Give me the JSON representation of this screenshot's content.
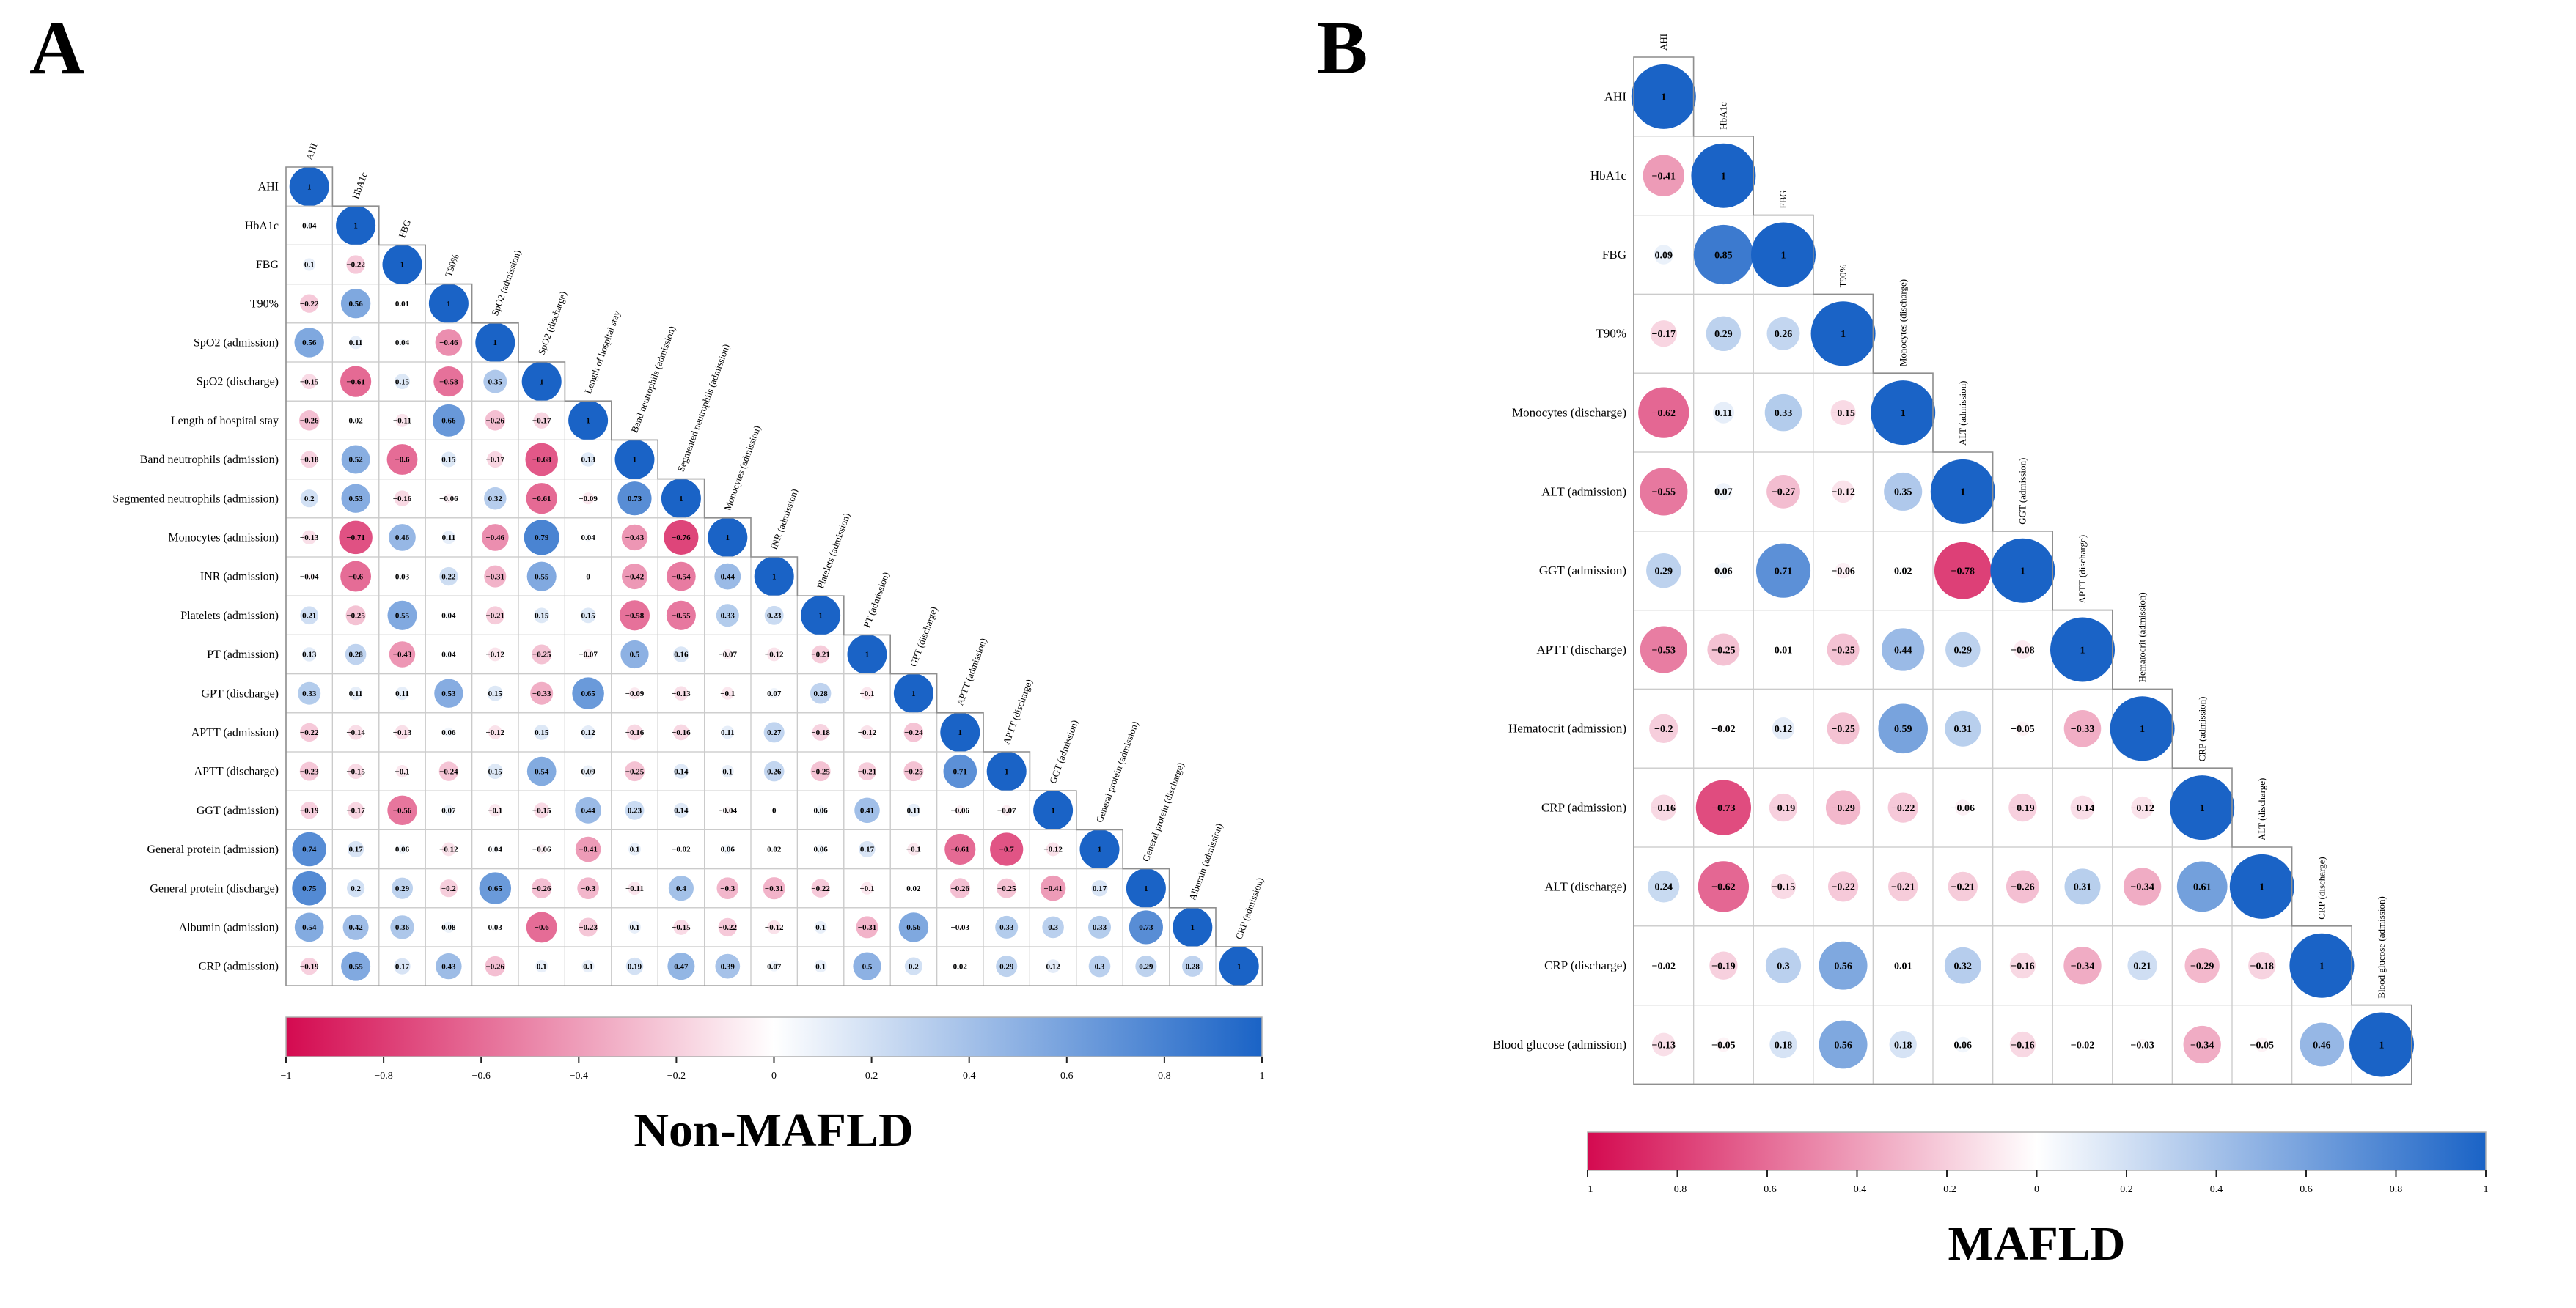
{
  "figure": {
    "panel_a_letter": "A",
    "panel_b_letter": "B",
    "panel_a_title": "Non-MAFLD",
    "panel_b_title": "MAFLD"
  },
  "colorbar": {
    "min": -1,
    "max": 1,
    "ticks": [
      -1,
      -0.8,
      -0.6,
      -0.4,
      -0.2,
      0,
      0.2,
      0.4,
      0.6,
      0.8,
      1
    ],
    "negative_color": "#D40A50",
    "mid_color": "#FFFFFF",
    "positive_color": "#1A63C6"
  },
  "chart_data": [
    {
      "type": "heatmap",
      "panel": "A",
      "title": "Non-MAFLD",
      "legend_position": "bottom",
      "value_range": [
        -1,
        1
      ],
      "variables": [
        "AHI",
        "HbA1c",
        "FBG",
        "T90%",
        "SpO2 (admission)",
        "SpO2 (discharge)",
        "Length of hospital stay",
        "Band neutrophils (admission)",
        "Segmented neutrophils (admission)",
        "Monocytes (admission)",
        "INR (admission)",
        "Platelets (admission)",
        "PT (admission)",
        "GPT (discharge)",
        "APTT (admission)",
        "APTT (discharge)",
        "GGT (admission)",
        "General protein (admission)",
        "General protein (discharge)",
        "Albumin (admission)",
        "CRP (admission)"
      ],
      "matrix": [
        [
          1
        ],
        [
          0.04,
          1
        ],
        [
          0.1,
          -0.22,
          1
        ],
        [
          -0.22,
          0.56,
          0.01,
          1
        ],
        [
          0.56,
          0.11,
          0.04,
          -0.46,
          1
        ],
        [
          -0.15,
          -0.61,
          0.15,
          -0.58,
          0.35,
          1
        ],
        [
          -0.26,
          0.02,
          -0.11,
          0.66,
          -0.26,
          -0.17,
          1
        ],
        [
          -0.18,
          0.52,
          -0.6,
          0.15,
          -0.17,
          -0.68,
          0.13,
          1
        ],
        [
          0.2,
          0.53,
          -0.16,
          -0.06,
          0.32,
          -0.61,
          -0.09,
          0.73,
          1
        ],
        [
          -0.13,
          -0.71,
          0.46,
          0.11,
          -0.46,
          0.79,
          0.04,
          -0.43,
          -0.76,
          1
        ],
        [
          -0.04,
          -0.6,
          0.03,
          0.22,
          -0.31,
          0.55,
          0,
          -0.42,
          -0.54,
          0.44,
          1
        ],
        [
          0.21,
          -0.25,
          0.55,
          0.04,
          -0.21,
          0.15,
          0.15,
          -0.58,
          -0.55,
          0.33,
          0.23,
          1
        ],
        [
          0.13,
          0.28,
          -0.43,
          0.04,
          -0.12,
          -0.25,
          -0.07,
          0.5,
          0.16,
          -0.07,
          -0.12,
          -0.21,
          1
        ],
        [
          0.33,
          0.11,
          0.11,
          0.53,
          0.15,
          -0.33,
          0.65,
          -0.09,
          -0.13,
          -0.1,
          0.07,
          0.28,
          -0.1,
          1
        ],
        [
          -0.22,
          -0.14,
          -0.13,
          0.06,
          -0.12,
          0.15,
          0.12,
          -0.16,
          -0.16,
          0.11,
          0.27,
          -0.18,
          -0.12,
          -0.24,
          1
        ],
        [
          -0.23,
          -0.15,
          -0.1,
          -0.24,
          0.15,
          0.54,
          0.09,
          -0.25,
          0.14,
          0.1,
          0.26,
          -0.25,
          -0.21,
          -0.25,
          0.71,
          1
        ],
        [
          -0.19,
          -0.17,
          -0.56,
          0.07,
          -0.1,
          -0.15,
          0.44,
          0.23,
          0.14,
          -0.04,
          0,
          0.06,
          0.41,
          0.11,
          -0.06,
          -0.07,
          1
        ],
        [
          0.74,
          0.17,
          0.06,
          -0.12,
          0.04,
          -0.06,
          -0.41,
          0.1,
          -0.02,
          0.06,
          0.02,
          0.06,
          0.17,
          -0.1,
          -0.61,
          -0.7,
          -0.12,
          1
        ],
        [
          0.75,
          0.2,
          0.29,
          -0.2,
          0.65,
          -0.26,
          -0.3,
          -0.11,
          0.4,
          -0.3,
          -0.31,
          -0.22,
          -0.1,
          0.02,
          -0.26,
          -0.25,
          -0.41,
          0.17,
          1
        ],
        [
          0.54,
          0.42,
          0.36,
          0.08,
          0.03,
          -0.6,
          -0.23,
          0.1,
          -0.15,
          -0.22,
          -0.12,
          0.1,
          -0.31,
          0.56,
          -0.03,
          0.33,
          0.3,
          0.33,
          0.73,
          1
        ],
        [
          -0.19,
          0.55,
          0.17,
          0.43,
          -0.26,
          0.1,
          0.1,
          0.19,
          0.47,
          0.39,
          0.07,
          0.1,
          0.5,
          0.2,
          0.02,
          0.29,
          0.12,
          0.3,
          0.29,
          0.28,
          1
        ]
      ]
    },
    {
      "type": "heatmap",
      "panel": "B",
      "title": "MAFLD",
      "legend_position": "bottom",
      "value_range": [
        -1,
        1
      ],
      "variables": [
        "AHI",
        "HbA1c",
        "FBG",
        "T90%",
        "Monocytes (discharge)",
        "ALT (admission)",
        "GGT (admission)",
        "APTT (discharge)",
        "Hematocrit (admission)",
        "CRP (admission)",
        "ALT (discharge)",
        "CRP (discharge)",
        "Blood glucose (admission)"
      ],
      "matrix": [
        [
          1
        ],
        [
          -0.41,
          1
        ],
        [
          0.09,
          0.85,
          1
        ],
        [
          -0.17,
          0.29,
          0.26,
          1
        ],
        [
          -0.62,
          0.11,
          0.33,
          -0.15,
          1
        ],
        [
          -0.55,
          0.07,
          -0.27,
          -0.12,
          0.35,
          1
        ],
        [
          0.29,
          0.06,
          0.71,
          -0.06,
          0.02,
          -0.78,
          1
        ],
        [
          -0.53,
          -0.25,
          0.01,
          -0.25,
          0.44,
          0.29,
          -0.08,
          1
        ],
        [
          -0.2,
          -0.02,
          0.12,
          -0.25,
          0.59,
          0.31,
          -0.05,
          -0.33,
          1
        ],
        [
          -0.16,
          -0.73,
          -0.19,
          -0.29,
          -0.22,
          -0.06,
          -0.19,
          -0.14,
          -0.12,
          1
        ],
        [
          0.24,
          -0.62,
          -0.15,
          -0.22,
          -0.21,
          -0.21,
          -0.26,
          0.31,
          -0.34,
          0.61,
          1
        ],
        [
          -0.02,
          -0.19,
          0.3,
          0.56,
          0.01,
          0.32,
          -0.16,
          -0.34,
          0.21,
          -0.29,
          -0.18,
          1
        ],
        [
          -0.13,
          -0.05,
          0.18,
          0.56,
          0.18,
          0.06,
          -0.16,
          -0.02,
          -0.03,
          -0.34,
          -0.05,
          0.46,
          1
        ]
      ]
    }
  ]
}
